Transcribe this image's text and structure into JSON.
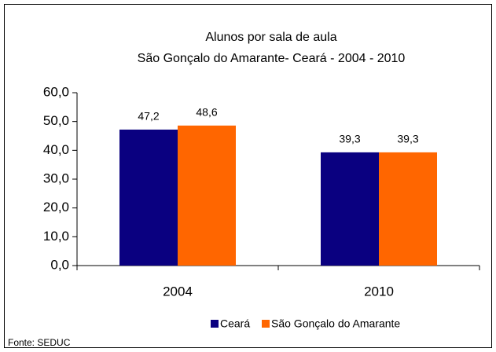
{
  "chart_data": {
    "type": "bar",
    "title": "Alunos por sala de aula",
    "subtitle": "São Gonçalo do Amarante- Ceará - 2004 - 2010",
    "categories": [
      "2004",
      "2010"
    ],
    "series": [
      {
        "name": "Ceará",
        "color": "#0a0080",
        "values": [
          47.2,
          39.3
        ],
        "value_labels": [
          "47,2",
          "39,3"
        ]
      },
      {
        "name": "São Gonçalo do Amarante",
        "color": "#ff6600",
        "values": [
          48.6,
          39.3
        ],
        "value_labels": [
          "48,6",
          "39,3"
        ]
      }
    ],
    "ylim": [
      0,
      60
    ],
    "yticks": [
      {
        "value": 0,
        "label": "0,0"
      },
      {
        "value": 10,
        "label": "10,0"
      },
      {
        "value": 20,
        "label": "20,0"
      },
      {
        "value": 30,
        "label": "30,0"
      },
      {
        "value": 40,
        "label": "40,0"
      },
      {
        "value": 50,
        "label": "50,0"
      },
      {
        "value": 60,
        "label": "60,0"
      }
    ],
    "grid": false,
    "legend": "bottom",
    "source": "Fonte: SEDUC"
  }
}
